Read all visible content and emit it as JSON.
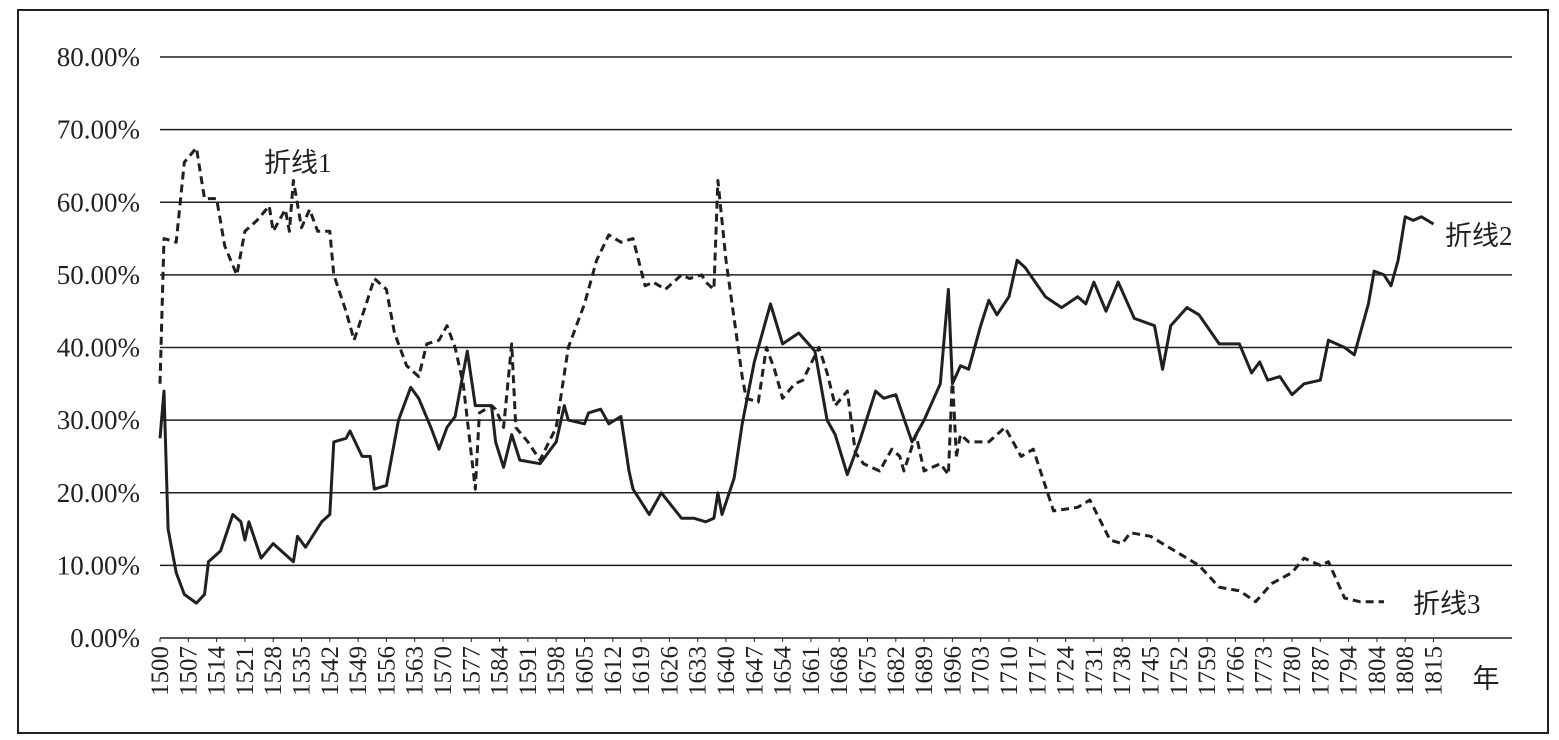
{
  "chart_data": {
    "type": "line",
    "x_label": "年",
    "xticks": [
      1500,
      1507,
      1514,
      1521,
      1528,
      1535,
      1542,
      1549,
      1556,
      1563,
      1570,
      1577,
      1584,
      1591,
      1598,
      1605,
      1612,
      1619,
      1626,
      1633,
      1640,
      1647,
      1654,
      1661,
      1668,
      1675,
      1682,
      1689,
      1696,
      1703,
      1710,
      1717,
      1724,
      1731,
      1738,
      1745,
      1752,
      1759,
      1766,
      1773,
      1780,
      1787,
      1794,
      1804,
      1808,
      1815
    ],
    "ylim": [
      0,
      80
    ],
    "yticks": [
      {
        "value": 0,
        "label": "0.00%"
      },
      {
        "value": 10,
        "label": "10.00%"
      },
      {
        "value": 20,
        "label": "20.00%"
      },
      {
        "value": 30,
        "label": "30.00%"
      },
      {
        "value": 40,
        "label": "40.00%"
      },
      {
        "value": 50,
        "label": "50.00%"
      },
      {
        "value": 60,
        "label": "60.00%"
      },
      {
        "value": 70,
        "label": "70.00%"
      },
      {
        "value": 80,
        "label": "80.00%"
      }
    ],
    "grid": true,
    "series": [
      {
        "name": "折线1",
        "color": "#231f20",
        "dash": true,
        "x": [
          1500,
          1501,
          1504,
          1506,
          1509,
          1511,
          1514,
          1516,
          1519,
          1521,
          1524,
          1527,
          1528,
          1531,
          1532,
          1533,
          1535,
          1537,
          1539,
          1542,
          1543,
          1546,
          1548,
          1551,
          1553,
          1556,
          1558,
          1561,
          1562,
          1564,
          1566,
          1569,
          1571,
          1573,
          1575,
          1578,
          1579,
          1582,
          1583,
          1585,
          1587,
          1588,
          1591,
          1594,
          1598,
          1601,
          1605,
          1608,
          1611,
          1614,
          1617,
          1620,
          1622,
          1625,
          1629,
          1631,
          1634,
          1635,
          1636,
          1637,
          1638,
          1640,
          1644,
          1645,
          1648,
          1650,
          1652,
          1654,
          1657,
          1659,
          1663,
          1665,
          1667,
          1670,
          1672,
          1674,
          1678,
          1681,
          1683,
          1684,
          1687,
          1689,
          1693,
          1695,
          1696,
          1697
        ],
        "values": [
          35,
          55,
          54.5,
          65.5,
          67.5,
          60.5,
          60.5,
          54,
          50,
          56,
          57.5,
          59.5,
          56,
          59,
          56,
          63,
          56.5,
          59,
          56,
          56,
          50,
          45,
          41,
          46,
          49.5,
          48,
          42,
          37.5,
          37,
          36,
          40.5,
          41,
          43,
          40,
          35,
          20.5,
          31,
          32,
          31.5,
          29,
          40.5,
          29,
          27,
          24.5,
          29,
          40,
          46,
          52,
          55.5,
          54.5,
          55,
          48.5,
          49,
          48,
          50,
          49.5,
          50,
          49,
          48.5,
          48,
          63,
          52,
          36,
          33,
          32.5,
          40,
          37,
          33,
          35,
          35.5,
          40,
          36.5,
          32,
          34,
          25.5,
          24,
          23,
          26,
          25,
          23,
          28,
          23,
          24,
          22.5,
          36,
          25
        ]
      },
      {
        "name": "折线2",
        "color": "#231f20",
        "dash": false,
        "x": [
          1500,
          1501,
          1502,
          1504,
          1506,
          1509,
          1511,
          1512,
          1515,
          1518,
          1520,
          1521,
          1522,
          1525,
          1528,
          1533,
          1534,
          1536,
          1540,
          1542,
          1543,
          1546,
          1547,
          1550,
          1552,
          1553,
          1556,
          1559,
          1562,
          1564,
          1567,
          1569,
          1571,
          1573,
          1576,
          1578,
          1582,
          1583,
          1585,
          1587,
          1589,
          1594,
          1598,
          1600,
          1601,
          1605,
          1606,
          1609,
          1611,
          1614,
          1616,
          1617,
          1621,
          1624,
          1629,
          1632,
          1635,
          1637,
          1638,
          1639,
          1642,
          1644,
          1647,
          1651,
          1654,
          1658,
          1662,
          1665,
          1667,
          1670,
          1673,
          1677,
          1679,
          1682,
          1686,
          1689,
          1693,
          1695,
          1696,
          1698,
          1700,
          1703,
          1705,
          1707,
          1710,
          1712,
          1714,
          1719,
          1723,
          1727,
          1729,
          1731,
          1734,
          1737,
          1741,
          1746,
          1748,
          1750,
          1754,
          1757,
          1762,
          1767,
          1770,
          1772,
          1774,
          1777,
          1780,
          1783,
          1787,
          1789,
          1793,
          1796,
          1801,
          1803,
          1805,
          1806,
          1807,
          1808,
          1810,
          1812,
          1815
        ],
        "values": [
          27.5,
          34,
          15,
          9,
          6,
          4.8,
          6,
          10.5,
          12,
          17,
          16,
          13.5,
          16,
          11,
          13,
          10.5,
          14,
          12.5,
          16,
          17,
          27,
          27.5,
          28.5,
          25,
          25,
          20.5,
          21,
          30,
          34.5,
          33,
          29,
          26,
          29,
          30.5,
          39.5,
          32,
          32,
          27,
          23.5,
          28,
          24.5,
          24,
          27,
          32,
          30,
          29.5,
          31,
          31.5,
          29.5,
          30.5,
          23,
          20.5,
          17,
          20,
          16.5,
          16.5,
          16,
          16.5,
          20,
          17,
          22,
          29.5,
          38,
          46,
          40.5,
          42,
          39.5,
          30,
          28,
          22.5,
          27,
          34,
          33,
          33.5,
          27,
          30,
          35,
          48,
          35,
          37.5,
          37,
          43,
          46.5,
          44.5,
          47,
          52,
          51,
          47,
          45.5,
          47,
          46,
          49,
          45,
          49,
          44,
          43,
          37,
          43,
          45.5,
          44.5,
          40.5,
          40.5,
          36.5,
          38,
          35.5,
          36,
          33.5,
          35,
          35.5,
          41,
          40,
          39,
          46,
          50.5,
          50,
          48.5,
          52,
          58,
          57.5,
          58,
          57
        ]
      },
      {
        "name": "折线3",
        "color": "#231f20",
        "dash": true,
        "x": [
          1697,
          1698,
          1700,
          1705,
          1709,
          1713,
          1716,
          1721,
          1727,
          1730,
          1735,
          1738,
          1740,
          1745,
          1751,
          1757,
          1762,
          1767,
          1771,
          1775,
          1780,
          1783,
          1787,
          1789,
          1793,
          1798,
          1805
        ],
        "values": [
          25,
          28,
          27,
          27,
          29,
          25,
          26,
          17.5,
          18,
          19,
          13.5,
          13,
          14.5,
          14,
          12,
          10,
          7,
          6.5,
          5,
          7.5,
          9,
          11,
          10,
          10.5,
          5.5,
          5,
          5
        ]
      }
    ]
  }
}
